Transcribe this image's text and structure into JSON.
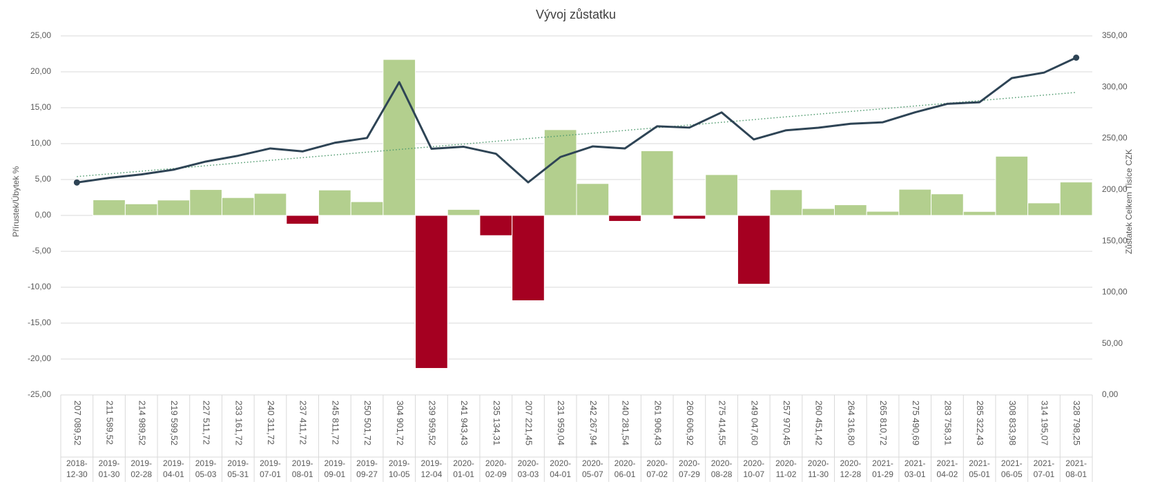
{
  "chart_data": {
    "type": "bar+line",
    "title": "Vývoj zůstatku",
    "y_label": "Přírustek/Úbytek %",
    "y2_label": "Zůstatek Celkem Tisíce CZK",
    "categories": [
      "2018-12-30",
      "2019-01-30",
      "2019-02-28",
      "2019-04-01",
      "2019-05-03",
      "2019-05-31",
      "2019-07-01",
      "2019-08-01",
      "2019-09-01",
      "2019-09-27",
      "2019-10-05",
      "2019-12-04",
      "2020-01-01",
      "2020-02-09",
      "2020-03-03",
      "2020-04-01",
      "2020-05-07",
      "2020-06-01",
      "2020-07-02",
      "2020-07-29",
      "2020-08-28",
      "2020-10-07",
      "2020-11-02",
      "2020-11-30",
      "2020-12-28",
      "2021-01-29",
      "2021-03-01",
      "2021-04-02",
      "2021-05-01",
      "2021-06-05",
      "2021-07-01",
      "2021-08-01"
    ],
    "series": [
      {
        "name": "Přírustek/Úbytek %",
        "type": "bar",
        "color": "#b3cf8e",
        "negative_color": "#a50021",
        "values": [
          null,
          2.17,
          1.61,
          2.14,
          3.6,
          2.48,
          3.07,
          -1.21,
          3.54,
          1.91,
          21.72,
          -21.3,
          0.83,
          -2.81,
          -11.87,
          11.94,
          4.44,
          -0.82,
          9.0,
          -0.5,
          5.68,
          -9.57,
          3.58,
          0.96,
          1.48,
          0.57,
          3.64,
          3.0,
          0.55,
          8.24,
          1.74,
          4.65
        ]
      },
      {
        "name": "Zůstatek Celkem Tisíce CZK",
        "type": "line",
        "axis": "y2",
        "color": "#2e4455",
        "trendline": true,
        "trendline_color": "#4f9a6e",
        "values": [
          207.08952,
          211.58952,
          214.98952,
          219.59952,
          227.51172,
          233.16172,
          240.31172,
          237.41172,
          245.81172,
          250.50172,
          304.90172,
          239.95952,
          241.94343,
          235.13431,
          207.22145,
          231.95904,
          242.26794,
          240.28154,
          261.90643,
          260.60692,
          275.41455,
          249.0476,
          257.97045,
          260.45142,
          264.3168,
          265.81072,
          275.49069,
          283.75831,
          285.32243,
          308.83398,
          314.19507,
          328.79825
        ],
        "value_labels": [
          "207 089,52",
          "211 589,52",
          "214 989,52",
          "219 599,52",
          "227 511,72",
          "233 161,72",
          "240 311,72",
          "237 411,72",
          "245 811,72",
          "250 501,72",
          "304 901,72",
          "239 959,52",
          "241 943,43",
          "235 134,31",
          "207 221,45",
          "231 959,04",
          "242 267,94",
          "240 281,54",
          "261 906,43",
          "260 606,92",
          "275 414,55",
          "249 047,60",
          "257 970,45",
          "260 451,42",
          "264 316,80",
          "265 810,72",
          "275 490,69",
          "283 758,31",
          "285 322,43",
          "308 833,98",
          "314 195,07",
          "328 798,25"
        ]
      }
    ],
    "ylim": [
      -25,
      25
    ],
    "yticks": [
      {
        "value": -25,
        "label": "-25,00"
      },
      {
        "value": -20,
        "label": "-20,00"
      },
      {
        "value": -15,
        "label": "-15,00"
      },
      {
        "value": -10,
        "label": "-10,00"
      },
      {
        "value": -5,
        "label": "-5,00"
      },
      {
        "value": 0,
        "label": "0,00"
      },
      {
        "value": 5,
        "label": "5,00"
      },
      {
        "value": 10,
        "label": "10,00"
      },
      {
        "value": 15,
        "label": "15,00"
      },
      {
        "value": 20,
        "label": "20,00"
      },
      {
        "value": 25,
        "label": "25,00"
      }
    ],
    "y2lim": [
      0,
      350
    ],
    "y2ticks": [
      {
        "value": 0,
        "label": "0,00"
      },
      {
        "value": 50,
        "label": "50,00"
      },
      {
        "value": 100,
        "label": "100,00"
      },
      {
        "value": 150,
        "label": "150,00"
      },
      {
        "value": 200,
        "label": "200,00"
      },
      {
        "value": 250,
        "label": "250,00"
      },
      {
        "value": 300,
        "label": "300,00"
      },
      {
        "value": 350,
        "label": "350,00"
      }
    ],
    "grid": true
  }
}
